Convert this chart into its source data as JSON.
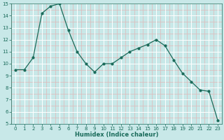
{
  "x": [
    0,
    1,
    2,
    3,
    4,
    5,
    6,
    7,
    8,
    9,
    10,
    11,
    12,
    13,
    14,
    15,
    16,
    17,
    18,
    19,
    20,
    21,
    22,
    23
  ],
  "y": [
    9.5,
    9.5,
    10.5,
    14.2,
    14.8,
    15.0,
    12.8,
    11.0,
    10.0,
    9.3,
    10.0,
    10.0,
    10.5,
    11.0,
    11.3,
    11.6,
    12.0,
    11.5,
    10.3,
    9.2,
    8.5,
    7.8,
    7.7,
    5.3
  ],
  "line_color": "#1a6b5a",
  "marker_color": "#1a6b5a",
  "bg_color": "#c8e8e8",
  "grid_major_color": "#ffffff",
  "grid_minor_color": "#e0b8b8",
  "xlabel": "Humidex (Indice chaleur)",
  "ylim": [
    5,
    15
  ],
  "xlim": [
    -0.5,
    23.5
  ],
  "yticks": [
    5,
    6,
    7,
    8,
    9,
    10,
    11,
    12,
    13,
    14,
    15
  ],
  "xticks": [
    0,
    1,
    2,
    3,
    4,
    5,
    6,
    7,
    8,
    9,
    10,
    11,
    12,
    13,
    14,
    15,
    16,
    17,
    18,
    19,
    20,
    21,
    22,
    23
  ],
  "tick_fontsize": 5,
  "xlabel_fontsize": 6,
  "tick_color": "#1a6b5a"
}
